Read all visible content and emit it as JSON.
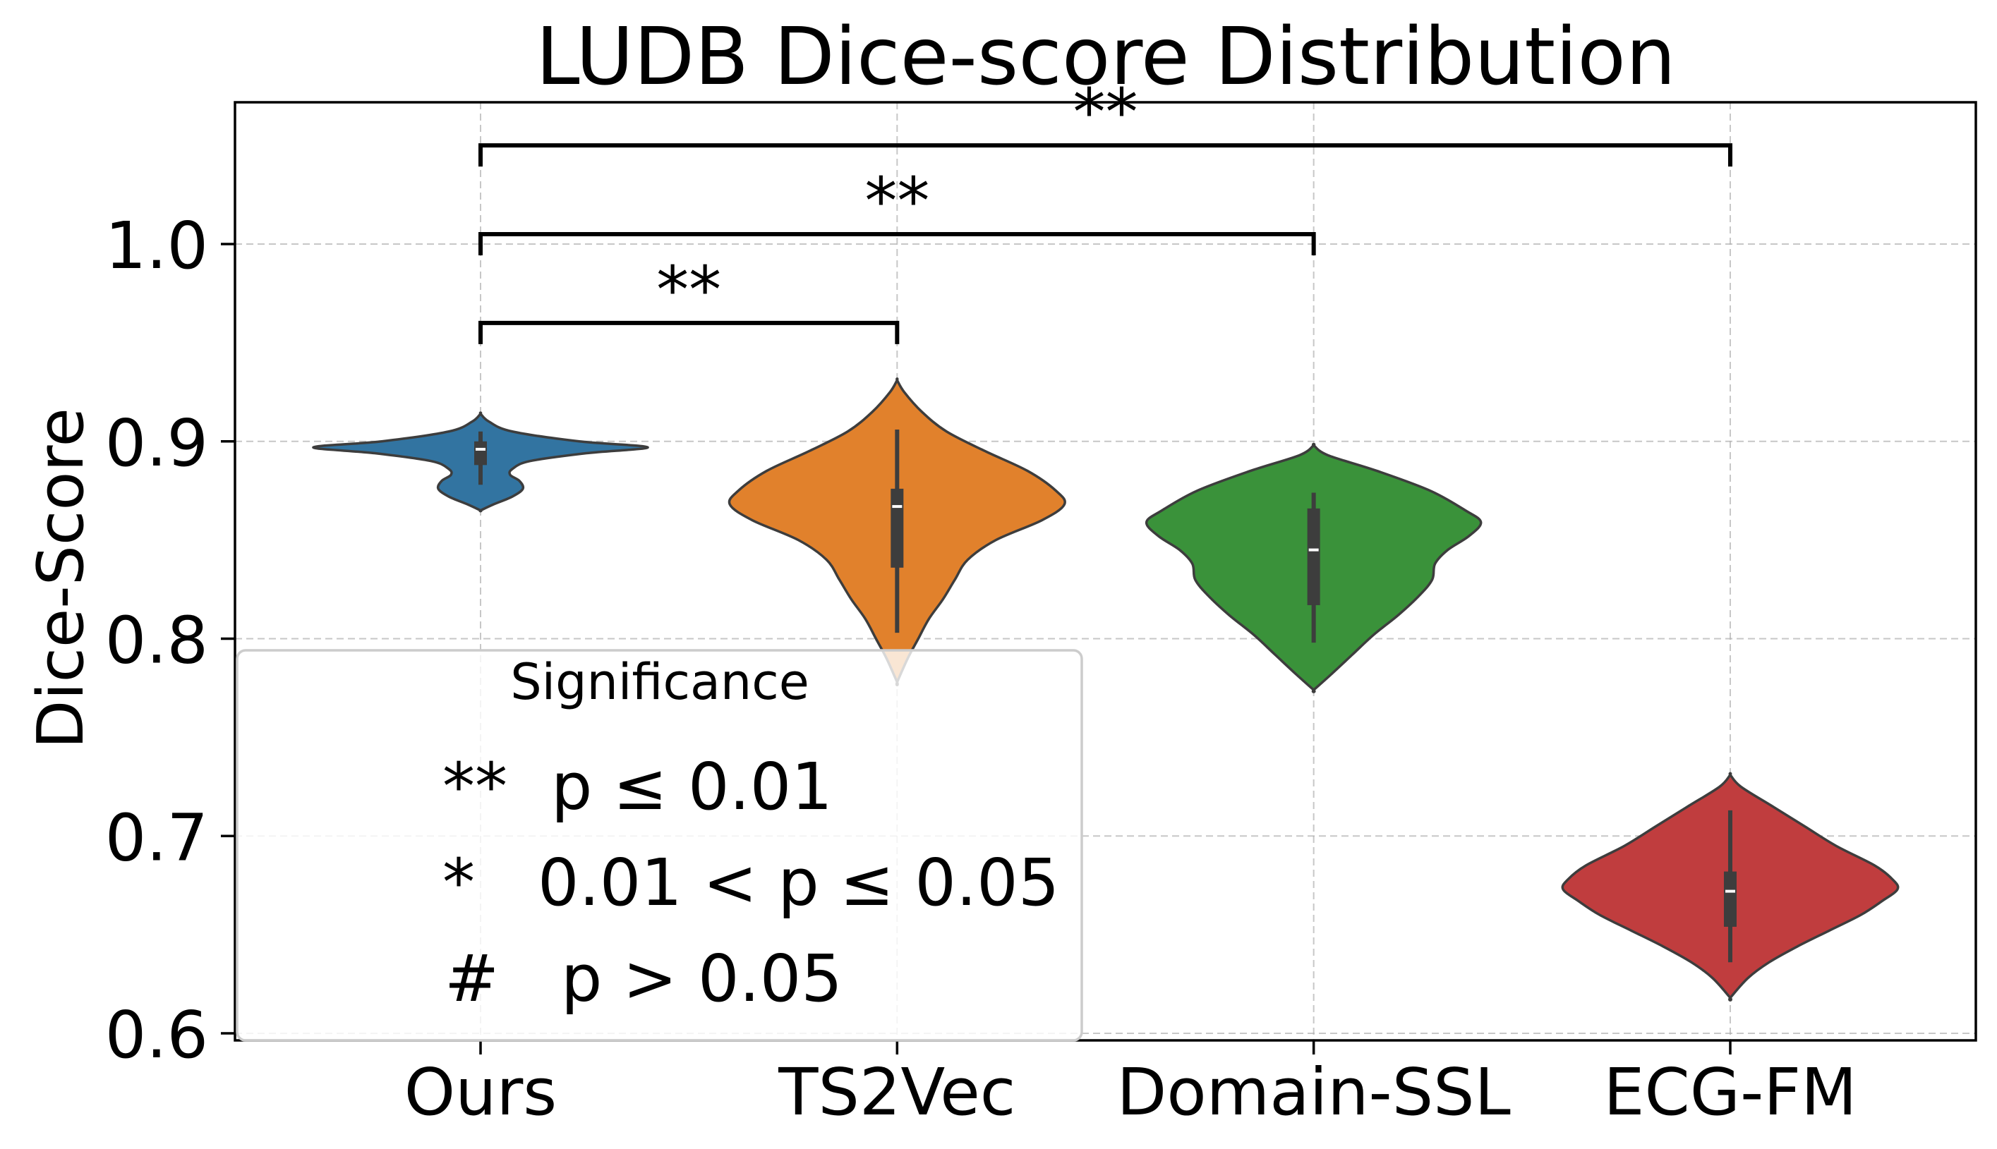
{
  "chart_data": {
    "type": "violin",
    "title": "LUDB Dice-score Distribution",
    "xlabel": "",
    "ylabel": "Dice-Score",
    "ylim": [
      0.593,
      1.075
    ],
    "yticks": [
      0.6,
      0.7,
      0.8,
      0.9,
      1.0
    ],
    "ytick_labels": [
      "0.6",
      "0.7",
      "0.8",
      "0.9",
      "1.0"
    ],
    "grid": true,
    "categories": [
      "Ours",
      "TS2Vec",
      "Domain-SSL",
      "ECG-FM"
    ],
    "series": [
      {
        "name": "Ours",
        "color": "#3274a1",
        "min": 0.865,
        "max": 0.914,
        "whisker_low": 0.878,
        "q1": 0.888,
        "median": 0.896,
        "q3": 0.9,
        "whisker_high": 0.905,
        "density": [
          [
            0.914,
            0
          ],
          [
            0.91,
            12
          ],
          [
            0.905,
            45
          ],
          [
            0.9,
            140
          ],
          [
            0.897,
            237
          ],
          [
            0.894,
            150
          ],
          [
            0.89,
            70
          ],
          [
            0.886,
            45
          ],
          [
            0.883,
            42
          ],
          [
            0.88,
            55
          ],
          [
            0.876,
            60
          ],
          [
            0.872,
            45
          ],
          [
            0.868,
            18
          ],
          [
            0.865,
            0
          ]
        ]
      },
      {
        "name": "TS2Vec",
        "color": "#e1812c",
        "min": 0.778,
        "max": 0.931,
        "whisker_low": 0.803,
        "q1": 0.836,
        "median": 0.867,
        "q3": 0.876,
        "whisker_high": 0.906,
        "density": [
          [
            0.931,
            0
          ],
          [
            0.925,
            10
          ],
          [
            0.915,
            35
          ],
          [
            0.905,
            70
          ],
          [
            0.895,
            125
          ],
          [
            0.885,
            185
          ],
          [
            0.875,
            225
          ],
          [
            0.868,
            237
          ],
          [
            0.86,
            205
          ],
          [
            0.85,
            140
          ],
          [
            0.84,
            100
          ],
          [
            0.83,
            82
          ],
          [
            0.82,
            65
          ],
          [
            0.81,
            45
          ],
          [
            0.8,
            30
          ],
          [
            0.79,
            15
          ],
          [
            0.778,
            0
          ]
        ]
      },
      {
        "name": "Domain-SSL",
        "color": "#3a923a",
        "min": 0.774,
        "max": 0.898,
        "whisker_low": 0.798,
        "q1": 0.817,
        "median": 0.845,
        "q3": 0.866,
        "whisker_high": 0.874,
        "density": [
          [
            0.898,
            0
          ],
          [
            0.893,
            20
          ],
          [
            0.885,
            90
          ],
          [
            0.875,
            165
          ],
          [
            0.865,
            215
          ],
          [
            0.859,
            237
          ],
          [
            0.852,
            220
          ],
          [
            0.845,
            190
          ],
          [
            0.838,
            172
          ],
          [
            0.83,
            168
          ],
          [
            0.822,
            150
          ],
          [
            0.812,
            120
          ],
          [
            0.802,
            85
          ],
          [
            0.792,
            55
          ],
          [
            0.782,
            25
          ],
          [
            0.774,
            0
          ]
        ]
      },
      {
        "name": "ECG-FM",
        "color": "#c03d3e",
        "min": 0.618,
        "max": 0.731,
        "whisker_low": 0.636,
        "q1": 0.654,
        "median": 0.672,
        "q3": 0.682,
        "whisker_high": 0.713,
        "density": [
          [
            0.731,
            0
          ],
          [
            0.725,
            15
          ],
          [
            0.715,
            60
          ],
          [
            0.705,
            105
          ],
          [
            0.695,
            150
          ],
          [
            0.685,
            205
          ],
          [
            0.678,
            230
          ],
          [
            0.673,
            237
          ],
          [
            0.667,
            215
          ],
          [
            0.66,
            185
          ],
          [
            0.652,
            140
          ],
          [
            0.644,
            95
          ],
          [
            0.636,
            55
          ],
          [
            0.628,
            25
          ],
          [
            0.618,
            0
          ]
        ]
      }
    ],
    "significance_brackets": [
      {
        "from": "Ours",
        "to": "TS2Vec",
        "label": "**",
        "level": 0.96
      },
      {
        "from": "Ours",
        "to": "Domain-SSL",
        "label": "**",
        "level": 1.005
      },
      {
        "from": "Ours",
        "to": "ECG-FM",
        "label": "**",
        "level": 1.05
      }
    ],
    "legend": {
      "title": "Significance",
      "position": "lower left",
      "entries": [
        {
          "symbol": "**",
          "text": "p ≤ 0.01"
        },
        {
          "symbol": "*",
          "text": "0.01 < p ≤ 0.05"
        },
        {
          "symbol": "#",
          "text": "p > 0.05"
        }
      ]
    }
  }
}
